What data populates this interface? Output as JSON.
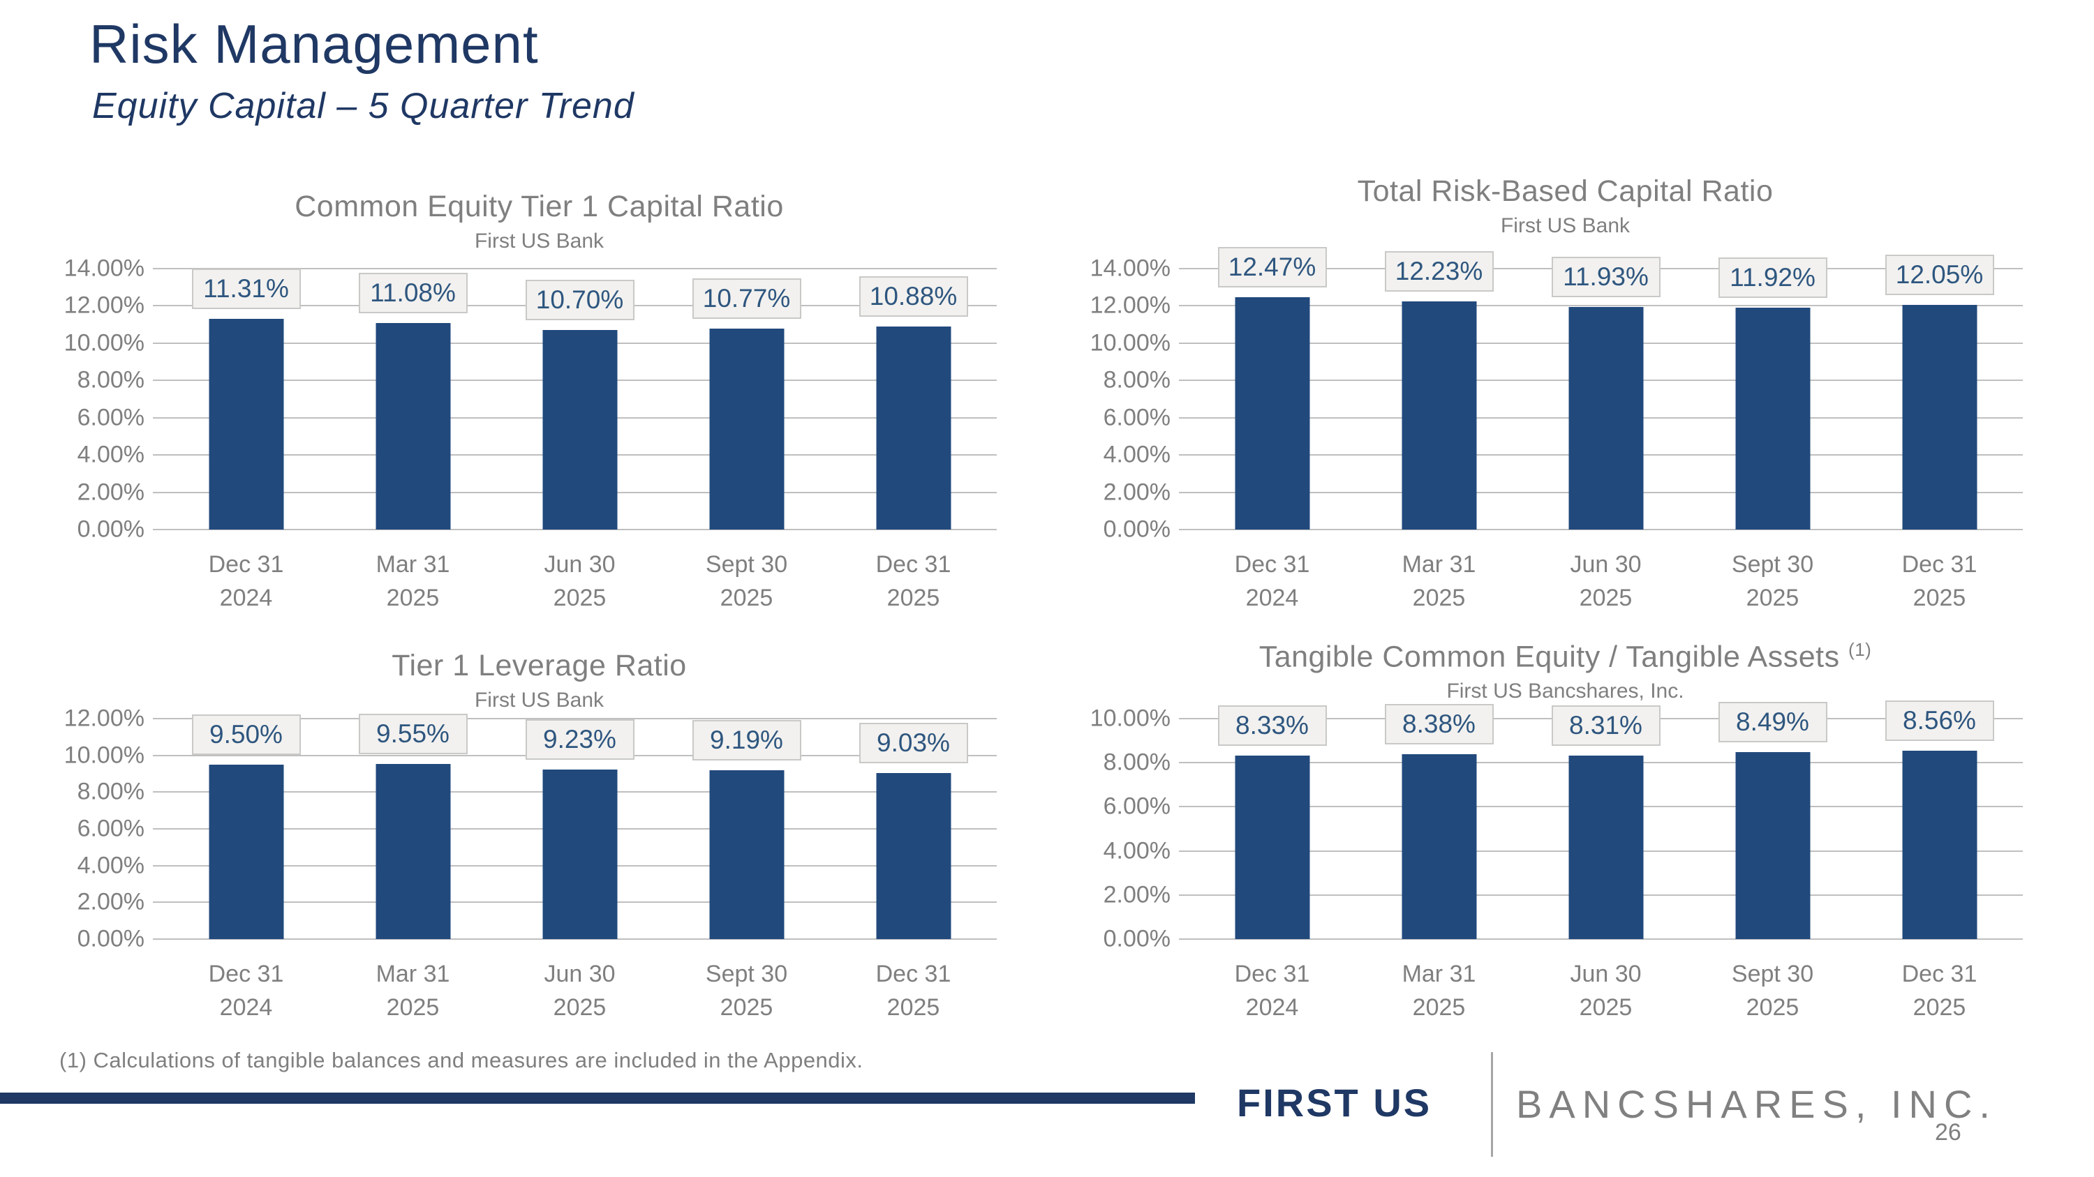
{
  "slide": {
    "title": "Risk Management",
    "subtitle": "Equity Capital – 5 Quarter Trend",
    "footnote": "(1) Calculations of tangible balances and measures are included in the Appendix.",
    "page_number": "26",
    "logo": {
      "primary": "FIRST US",
      "secondary": "BANCSHARES, INC."
    },
    "colors": {
      "navy": "#1F3864",
      "bar_fill": "#21497C",
      "chip_bg": "#F2F1EF",
      "chip_border": "#C9C9C7",
      "chip_text": "#2E567F",
      "gray_text": "#7F7F7F",
      "gridline": "#BFBFBF"
    }
  },
  "chart_data": [
    {
      "type": "bar",
      "title": "Common Equity Tier 1 Capital Ratio",
      "subtitle": "First US Bank",
      "categories": [
        [
          "Dec 31",
          "2024"
        ],
        [
          "Mar 31",
          "2025"
        ],
        [
          "Jun 30",
          "2025"
        ],
        [
          "Sept 30",
          "2025"
        ],
        [
          "Dec 31",
          "2025"
        ]
      ],
      "values": [
        11.31,
        11.08,
        10.7,
        10.77,
        10.88
      ],
      "labels": [
        "11.31%",
        "11.08%",
        "10.70%",
        "10.77%",
        "10.88%"
      ],
      "ylim": [
        0,
        14
      ],
      "ytick_step": 2,
      "yticks": [
        "0.00%",
        "2.00%",
        "4.00%",
        "6.00%",
        "8.00%",
        "10.00%",
        "12.00%",
        "14.00%"
      ],
      "grid": true,
      "legend": "none"
    },
    {
      "type": "bar",
      "title": "Total Risk-Based Capital Ratio",
      "subtitle": "First US Bank",
      "categories": [
        [
          "Dec 31",
          "2024"
        ],
        [
          "Mar 31",
          "2025"
        ],
        [
          "Jun 30",
          "2025"
        ],
        [
          "Sept 30",
          "2025"
        ],
        [
          "Dec 31",
          "2025"
        ]
      ],
      "values": [
        12.47,
        12.23,
        11.93,
        11.92,
        12.05
      ],
      "labels": [
        "12.47%",
        "12.23%",
        "11.93%",
        "11.92%",
        "12.05%"
      ],
      "ylim": [
        0,
        14
      ],
      "ytick_step": 2,
      "yticks": [
        "0.00%",
        "2.00%",
        "4.00%",
        "6.00%",
        "8.00%",
        "10.00%",
        "12.00%",
        "14.00%"
      ],
      "grid": true,
      "legend": "none"
    },
    {
      "type": "bar",
      "title": "Tier 1 Leverage Ratio",
      "subtitle": "First US Bank",
      "categories": [
        [
          "Dec 31",
          "2024"
        ],
        [
          "Mar 31",
          "2025"
        ],
        [
          "Jun 30",
          "2025"
        ],
        [
          "Sept 30",
          "2025"
        ],
        [
          "Dec 31",
          "2025"
        ]
      ],
      "values": [
        9.5,
        9.55,
        9.23,
        9.19,
        9.03
      ],
      "labels": [
        "9.50%",
        "9.55%",
        "9.23%",
        "9.19%",
        "9.03%"
      ],
      "ylim": [
        0,
        12
      ],
      "ytick_step": 2,
      "yticks": [
        "0.00%",
        "2.00%",
        "4.00%",
        "6.00%",
        "8.00%",
        "10.00%",
        "12.00%"
      ],
      "grid": true,
      "legend": "none"
    },
    {
      "type": "bar",
      "title": "Tangible Common Equity / Tangible Assets",
      "title_sup": "(1)",
      "subtitle": "First US Bancshares, Inc.",
      "categories": [
        [
          "Dec 31",
          "2024"
        ],
        [
          "Mar 31",
          "2025"
        ],
        [
          "Jun 30",
          "2025"
        ],
        [
          "Sept 30",
          "2025"
        ],
        [
          "Dec 31",
          "2025"
        ]
      ],
      "values": [
        8.33,
        8.38,
        8.31,
        8.49,
        8.56
      ],
      "labels": [
        "8.33%",
        "8.38%",
        "8.31%",
        "8.49%",
        "8.56%"
      ],
      "ylim": [
        0,
        10
      ],
      "ytick_step": 2,
      "yticks": [
        "0.00%",
        "2.00%",
        "4.00%",
        "6.00%",
        "8.00%",
        "10.00%"
      ],
      "grid": true,
      "legend": "none"
    }
  ]
}
